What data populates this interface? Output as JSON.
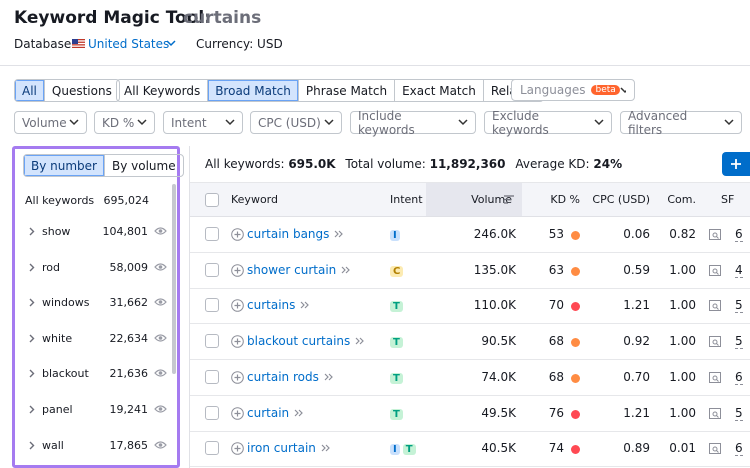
{
  "header": {
    "title": "Keyword Magic Tool:",
    "query": "curtains",
    "database_label": "Database:",
    "database": "United States",
    "currency": "Currency: USD"
  },
  "tabs": {
    "question_type": [
      {
        "label": "All",
        "active": true
      },
      {
        "label": "Questions"
      }
    ],
    "match_type": [
      {
        "label": "All Keywords"
      },
      {
        "label": "Broad Match",
        "active": true
      },
      {
        "label": "Phrase Match"
      },
      {
        "label": "Exact Match"
      },
      {
        "label": "Related"
      }
    ],
    "languages": "Languages",
    "beta": "beta"
  },
  "filters": [
    "Volume",
    "KD %",
    "Intent",
    "CPC (USD)",
    "Include keywords",
    "Exclude keywords",
    "Advanced filters"
  ],
  "sidebar": {
    "sort_options": [
      {
        "label": "By number",
        "active": true
      },
      {
        "label": "By volume"
      }
    ],
    "all_label": "All keywords",
    "all_count": "695,024",
    "groups": [
      {
        "name": "show",
        "count": "104,801"
      },
      {
        "name": "rod",
        "count": "58,009"
      },
      {
        "name": "windows",
        "count": "31,662"
      },
      {
        "name": "white",
        "count": "22,634"
      },
      {
        "name": "blackout",
        "count": "21,636"
      },
      {
        "name": "panel",
        "count": "19,241"
      },
      {
        "name": "wall",
        "count": "17,865"
      }
    ]
  },
  "summary": {
    "all_label": "All keywords:",
    "all_value": "695.0K",
    "volume_label": "Total volume:",
    "volume_value": "11,892,360",
    "kd_label": "Average KD:",
    "kd_value": "24%"
  },
  "table": {
    "columns": [
      "Keyword",
      "Intent",
      "Volume",
      "KD %",
      "CPC (USD)",
      "Com.",
      "SF"
    ],
    "rows": [
      {
        "keyword": "curtain bangs",
        "intent": [
          "I"
        ],
        "volume": "246.0K",
        "kd": 53,
        "kd_color": "#ff8c43",
        "cpc": "0.06",
        "com": "0.82",
        "sf": "6"
      },
      {
        "keyword": "shower curtain",
        "intent": [
          "C"
        ],
        "volume": "135.0K",
        "kd": 63,
        "kd_color": "#ff8c43",
        "cpc": "0.59",
        "com": "1.00",
        "sf": "4"
      },
      {
        "keyword": "curtains",
        "intent": [
          "T"
        ],
        "volume": "110.0K",
        "kd": 70,
        "kd_color": "#ff4953",
        "cpc": "1.21",
        "com": "1.00",
        "sf": "5"
      },
      {
        "keyword": "blackout curtains",
        "intent": [
          "T"
        ],
        "volume": "90.5K",
        "kd": 68,
        "kd_color": "#ff8c43",
        "cpc": "0.92",
        "com": "1.00",
        "sf": "5"
      },
      {
        "keyword": "curtain rods",
        "intent": [
          "T"
        ],
        "volume": "74.0K",
        "kd": 68,
        "kd_color": "#ff8c43",
        "cpc": "0.70",
        "com": "1.00",
        "sf": "6"
      },
      {
        "keyword": "curtain",
        "intent": [
          "T"
        ],
        "volume": "49.5K",
        "kd": 76,
        "kd_color": "#ff4953",
        "cpc": "1.21",
        "com": "1.00",
        "sf": "5"
      },
      {
        "keyword": "iron curtain",
        "intent": [
          "I",
          "T"
        ],
        "volume": "40.5K",
        "kd": 74,
        "kd_color": "#ff4953",
        "cpc": "0.89",
        "com": "0.01",
        "sf": "6"
      }
    ]
  }
}
